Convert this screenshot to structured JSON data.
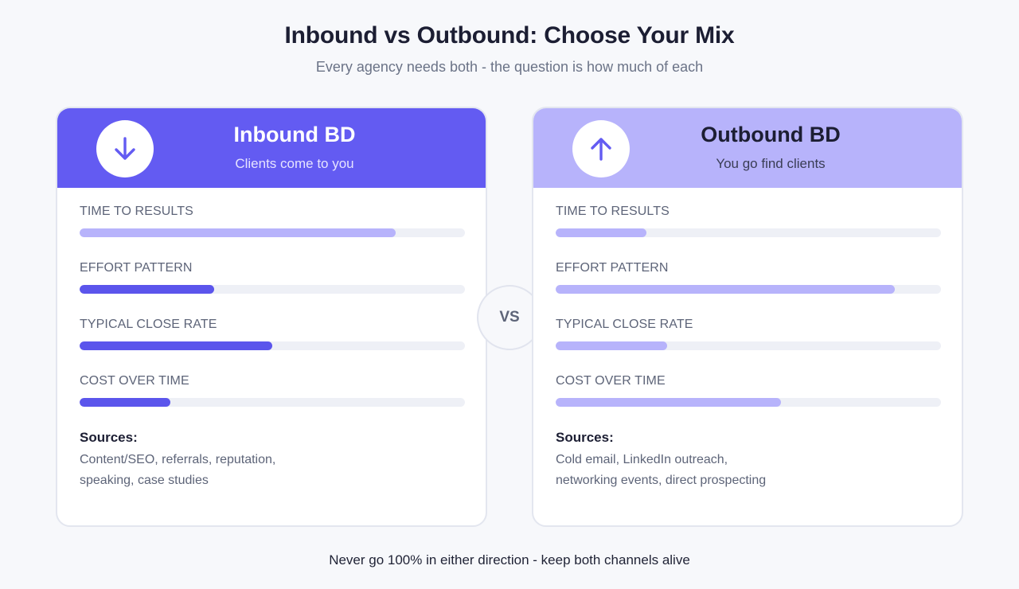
{
  "title": "Inbound vs Outbound: Choose Your Mix",
  "subtitle": "Every agency needs both - the question is how much of each",
  "vs_label": "VS",
  "footer": "Never go 100% in either direction - keep both channels alive",
  "colors": {
    "inbound_header": "#635bf2",
    "outbound_header": "#b7b3fb",
    "bar_strong": "#5b55ec",
    "bar_soft": "#b7b3fb",
    "track": "#eef0f6"
  },
  "inbound": {
    "icon": "arrow-down-icon",
    "title": "Inbound BD",
    "subtitle": "Clients come to you",
    "metrics": [
      {
        "label": "TIME TO RESULTS",
        "value": 0.82,
        "style": "soft"
      },
      {
        "label": "EFFORT PATTERN",
        "value": 0.35,
        "style": "strong"
      },
      {
        "label": "TYPICAL CLOSE RATE",
        "value": 0.5,
        "style": "strong"
      },
      {
        "label": "COST OVER TIME",
        "value": 0.235,
        "style": "strong"
      }
    ],
    "sources_title": "Sources:",
    "sources_lines": [
      "Content/SEO, referrals, reputation,",
      "speaking, case studies"
    ]
  },
  "outbound": {
    "icon": "arrow-up-icon",
    "title": "Outbound BD",
    "subtitle": "You go find clients",
    "metrics": [
      {
        "label": "TIME TO RESULTS",
        "value": 0.235,
        "style": "soft"
      },
      {
        "label": "EFFORT PATTERN",
        "value": 0.88,
        "style": "soft"
      },
      {
        "label": "TYPICAL CLOSE RATE",
        "value": 0.29,
        "style": "soft"
      },
      {
        "label": "COST OVER TIME",
        "value": 0.585,
        "style": "soft"
      }
    ],
    "sources_title": "Sources:",
    "sources_lines": [
      "Cold email, LinkedIn outreach,",
      "networking events, direct prospecting"
    ]
  }
}
